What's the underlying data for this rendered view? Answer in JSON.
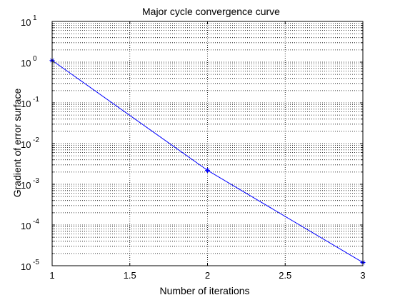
{
  "chart_data": {
    "type": "line",
    "title": "Major cycle convergence curve",
    "xlabel": "Number of iterations",
    "ylabel": "Gradient of error surface",
    "x": [
      1,
      2,
      3
    ],
    "series": [
      {
        "values": [
          1.1,
          0.0022,
          1.2e-05
        ],
        "color": "#0000ff",
        "marker": "*"
      }
    ],
    "xlim": [
      1,
      3
    ],
    "xticks": [
      1,
      1.5,
      2,
      2.5,
      3
    ],
    "xtick_labels": [
      "1",
      "1.5",
      "2",
      "2.5",
      "3"
    ],
    "ylim": [
      1e-05,
      10
    ],
    "yscale": "log",
    "yticks": [
      {
        "value": 1e-05,
        "base": "10",
        "exp": "-5"
      },
      {
        "value": 0.0001,
        "base": "10",
        "exp": "-4"
      },
      {
        "value": 0.001,
        "base": "10",
        "exp": "-3"
      },
      {
        "value": 0.01,
        "base": "10",
        "exp": "-2"
      },
      {
        "value": 0.1,
        "base": "10",
        "exp": "-1"
      },
      {
        "value": 1,
        "base": "10",
        "exp": "0"
      },
      {
        "value": 10,
        "base": "10",
        "exp": "1"
      }
    ],
    "grid": true,
    "grid_style": "dotted"
  }
}
